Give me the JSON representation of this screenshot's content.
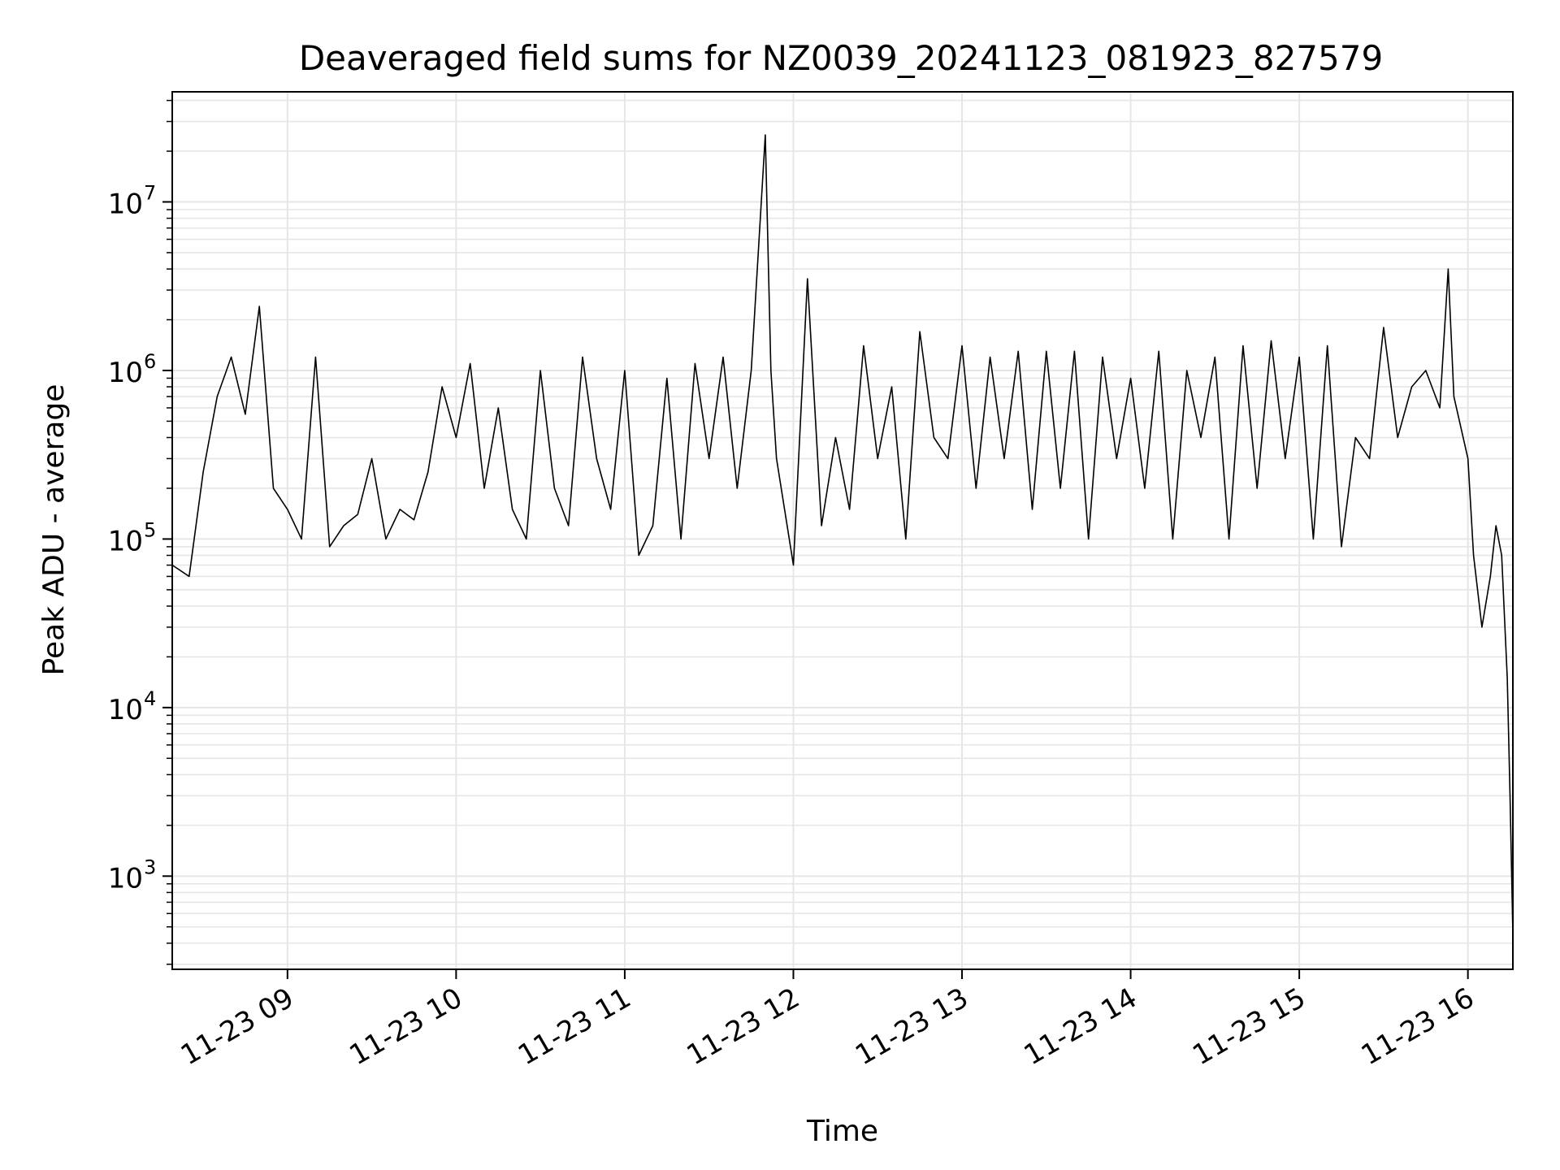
{
  "chart_data": {
    "type": "line",
    "title": "Deaveraged field sums for NZ0039_20241123_081923_827579",
    "xlabel": "Time",
    "ylabel": "Peak ADU - average",
    "yscale": "log",
    "grid": true,
    "xlim": [
      "2024-11-23 08:19",
      "2024-11-23 16:16"
    ],
    "ylim": [
      280,
      45000000
    ],
    "x_ticks": [
      "11-23 09",
      "11-23 10",
      "11-23 11",
      "11-23 12",
      "11-23 13",
      "11-23 14",
      "11-23 15",
      "11-23 16"
    ],
    "y_ticks": [
      {
        "base": "10",
        "exp": "3",
        "value": 1000
      },
      {
        "base": "10",
        "exp": "4",
        "value": 10000
      },
      {
        "base": "10",
        "exp": "5",
        "value": 100000
      },
      {
        "base": "10",
        "exp": "6",
        "value": 1000000
      },
      {
        "base": "10",
        "exp": "7",
        "value": 10000000
      }
    ],
    "line_color": "#000000",
    "grid_color": "#e6e6e6",
    "series": [
      {
        "x": [
          "08:19",
          "08:25",
          "08:30",
          "08:35",
          "08:40",
          "08:45",
          "08:50",
          "08:55",
          "09:00",
          "09:05",
          "09:10",
          "09:15",
          "09:20",
          "09:25",
          "09:30",
          "09:35",
          "09:40",
          "09:45",
          "09:50",
          "09:55",
          "10:00",
          "10:05",
          "10:10",
          "10:15",
          "10:20",
          "10:25",
          "10:30",
          "10:35",
          "10:40",
          "10:45",
          "10:50",
          "10:55",
          "11:00",
          "11:05",
          "11:10",
          "11:15",
          "11:20",
          "11:25",
          "11:30",
          "11:35",
          "11:40",
          "11:45",
          "11:50",
          "11:52",
          "11:54",
          "12:00",
          "12:05",
          "12:10",
          "12:15",
          "12:20",
          "12:25",
          "12:30",
          "12:35",
          "12:40",
          "12:45",
          "12:50",
          "12:55",
          "13:00",
          "13:05",
          "13:10",
          "13:15",
          "13:20",
          "13:25",
          "13:30",
          "13:35",
          "13:40",
          "13:45",
          "13:50",
          "13:55",
          "14:00",
          "14:05",
          "14:10",
          "14:15",
          "14:20",
          "14:25",
          "14:30",
          "14:35",
          "14:40",
          "14:45",
          "14:50",
          "14:55",
          "15:00",
          "15:05",
          "15:10",
          "15:15",
          "15:20",
          "15:25",
          "15:30",
          "15:35",
          "15:40",
          "15:45",
          "15:50",
          "15:53",
          "15:55",
          "16:00",
          "16:02",
          "16:05",
          "16:08",
          "16:10",
          "16:12",
          "16:14",
          "16:15",
          "16:16"
        ],
        "y": [
          70000,
          60000,
          250000,
          700000,
          1200000,
          550000,
          2400000,
          200000,
          150000,
          100000,
          1200000,
          90000,
          120000,
          140000,
          300000,
          100000,
          150000,
          130000,
          250000,
          800000,
          400000,
          1100000,
          200000,
          600000,
          150000,
          100000,
          1000000,
          200000,
          120000,
          1200000,
          300000,
          150000,
          1000000,
          80000,
          120000,
          900000,
          100000,
          1100000,
          300000,
          1200000,
          200000,
          1000000,
          25000000,
          1000000,
          300000,
          70000,
          3500000,
          120000,
          400000,
          150000,
          1400000,
          300000,
          800000,
          100000,
          1700000,
          400000,
          300000,
          1400000,
          200000,
          1200000,
          300000,
          1300000,
          150000,
          1300000,
          200000,
          1300000,
          100000,
          1200000,
          300000,
          900000,
          200000,
          1300000,
          100000,
          1000000,
          400000,
          1200000,
          100000,
          1400000,
          200000,
          1500000,
          300000,
          1200000,
          100000,
          1400000,
          90000,
          400000,
          300000,
          1800000,
          400000,
          800000,
          1000000,
          600000,
          4000000,
          700000,
          300000,
          80000,
          30000,
          60000,
          120000,
          80000,
          15000,
          3000,
          450
        ]
      }
    ]
  }
}
